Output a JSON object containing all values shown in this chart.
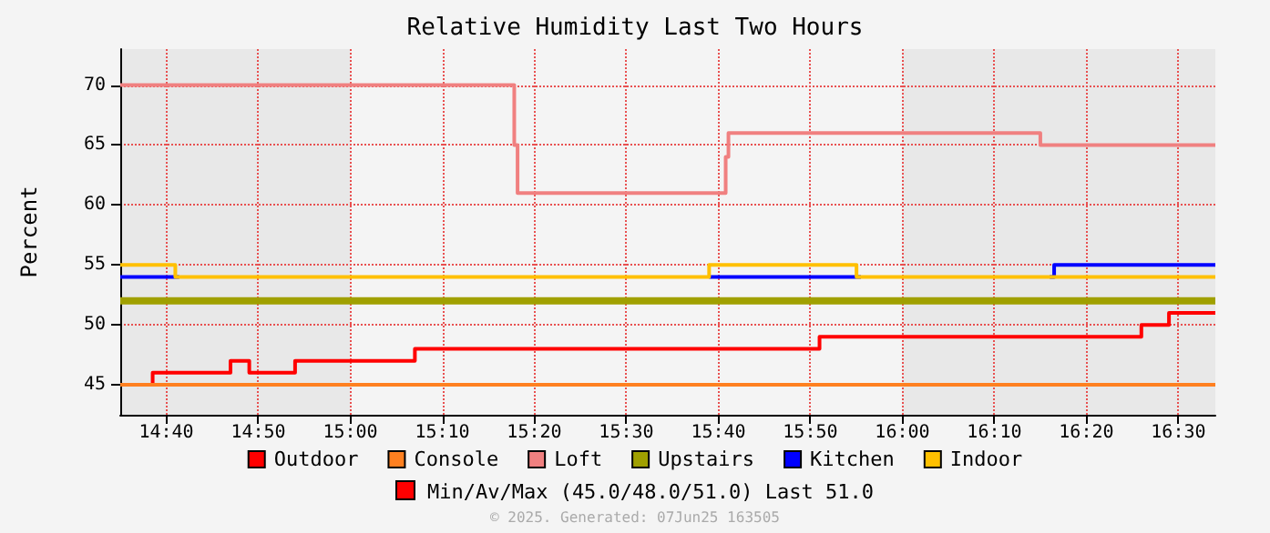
{
  "chart_data": {
    "type": "step",
    "title": "Relative Humidity Last Two Hours",
    "ylabel": "Percent",
    "xlim": [
      14.5833,
      16.567
    ],
    "ylim": [
      42.5,
      73
    ],
    "xticks": [
      {
        "value": 14.6667,
        "label": "14:40"
      },
      {
        "value": 14.8333,
        "label": "14:50"
      },
      {
        "value": 15,
        "label": "15:00"
      },
      {
        "value": 15.1667,
        "label": "15:10"
      },
      {
        "value": 15.3333,
        "label": "15:20"
      },
      {
        "value": 15.5,
        "label": "15:30"
      },
      {
        "value": 15.6667,
        "label": "15:40"
      },
      {
        "value": 15.8333,
        "label": "15:50"
      },
      {
        "value": 16,
        "label": "16:00"
      },
      {
        "value": 16.1667,
        "label": "16:10"
      },
      {
        "value": 16.3333,
        "label": "16:20"
      },
      {
        "value": 16.5,
        "label": "16:30"
      }
    ],
    "yticks": [
      45,
      50,
      55,
      60,
      65,
      70
    ],
    "grid": true,
    "legend": "bottom",
    "bands": [
      {
        "axis": "x",
        "from": 14.5833,
        "to": 15,
        "color": "#e8e8e8"
      },
      {
        "axis": "x",
        "from": 16,
        "to": 16.567,
        "color": "#e8e8e8"
      }
    ],
    "series": [
      {
        "name": "Outdoor",
        "color": "#ff0000",
        "x": [
          14.5833,
          14.642,
          14.783,
          14.817,
          14.9,
          15.117,
          15.85,
          16.433,
          16.483,
          16.567
        ],
        "values": [
          45,
          46,
          47,
          46,
          47,
          48,
          49,
          50,
          51,
          51
        ]
      },
      {
        "name": "Console",
        "color": "#ff8020",
        "x": [
          14.5833,
          16.567
        ],
        "values": [
          45,
          45
        ]
      },
      {
        "name": "Loft",
        "color": "#f08080",
        "x": [
          14.5833,
          15.297,
          15.303,
          15.68,
          15.685,
          16.25,
          16.567
        ],
        "values": [
          70,
          65,
          61,
          64,
          66,
          65,
          65
        ]
      },
      {
        "name": "Upstairs",
        "color": "#a0a000",
        "x": [
          14.5833,
          16.567
        ],
        "values": [
          52,
          52
        ]
      },
      {
        "name": "Kitchen",
        "color": "#0000ff",
        "x": [
          14.5833,
          14.683,
          14.69,
          15.65,
          15.917,
          15.925,
          16.267,
          16.275,
          16.567
        ],
        "values": [
          54,
          54,
          null,
          54,
          54,
          null,
          54,
          55,
          55
        ]
      },
      {
        "name": "Indoor",
        "color": "#ffc000",
        "x": [
          14.5833,
          14.683,
          15.65,
          15.917,
          16.567
        ],
        "values": [
          55,
          54,
          55,
          54,
          54
        ]
      }
    ],
    "annotations": [
      "Min/Av/Max (45.0/48.0/51.0) Last 51.0",
      "© 2025. Generated: 07Jun25 163505"
    ]
  }
}
